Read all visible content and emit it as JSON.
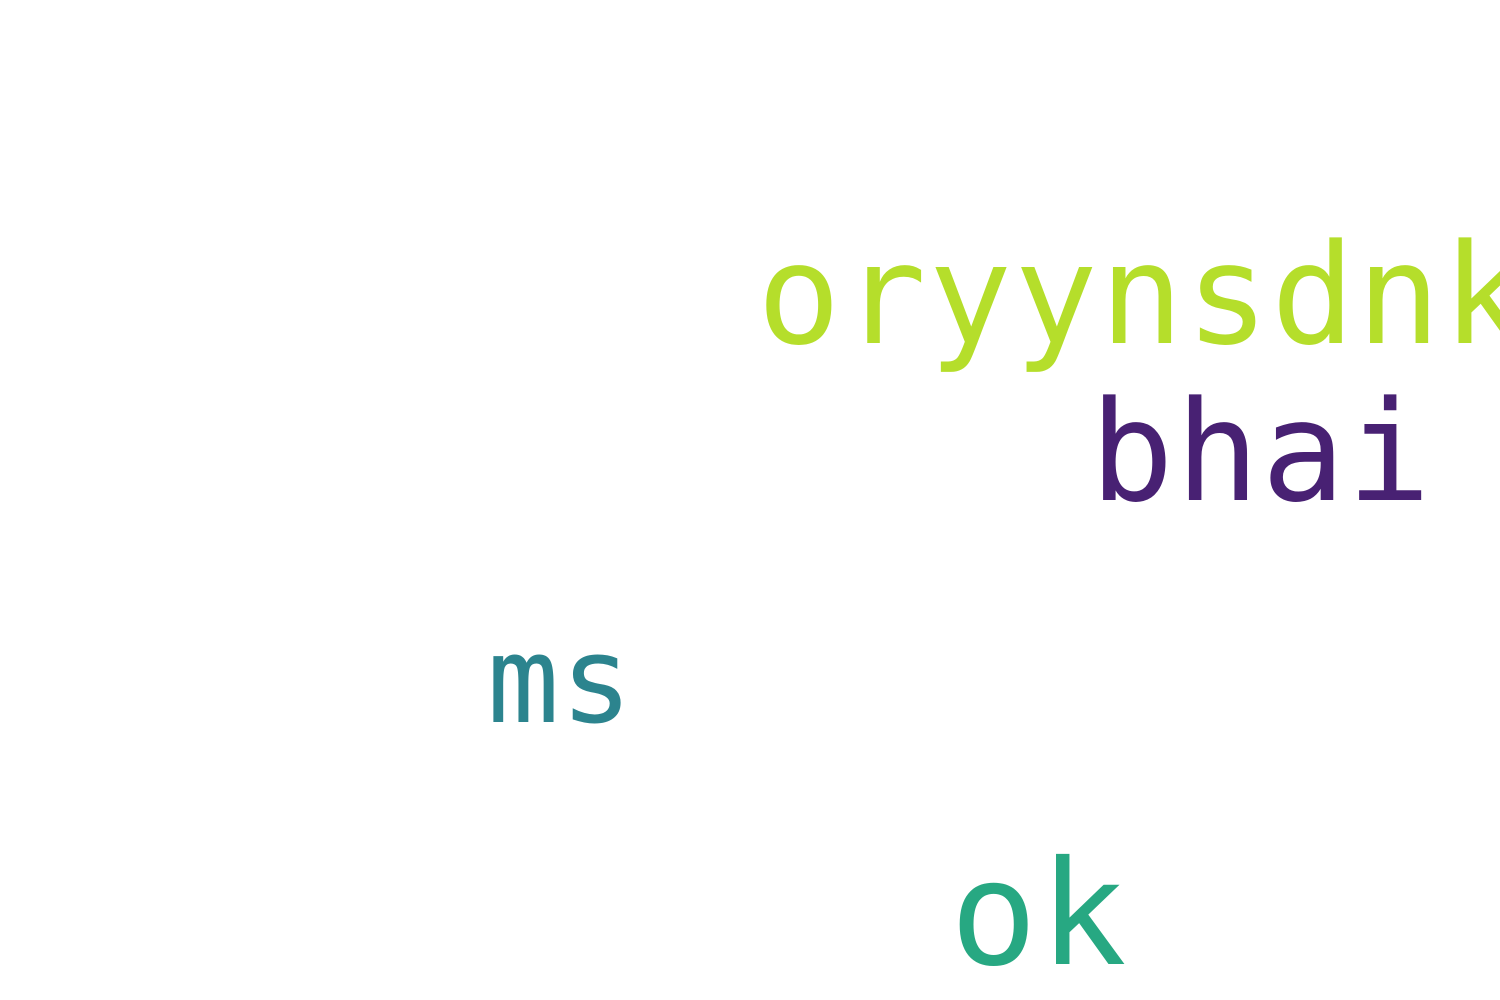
{
  "wordcloud": {
    "background": "#ffffff",
    "words": [
      {
        "text": "oryynsdnk",
        "color": "#b5de2b"
      },
      {
        "text": "bhai",
        "color": "#482173"
      },
      {
        "text": "ms",
        "color": "#2c848e"
      },
      {
        "text": "ok",
        "color": "#27a882"
      }
    ]
  }
}
